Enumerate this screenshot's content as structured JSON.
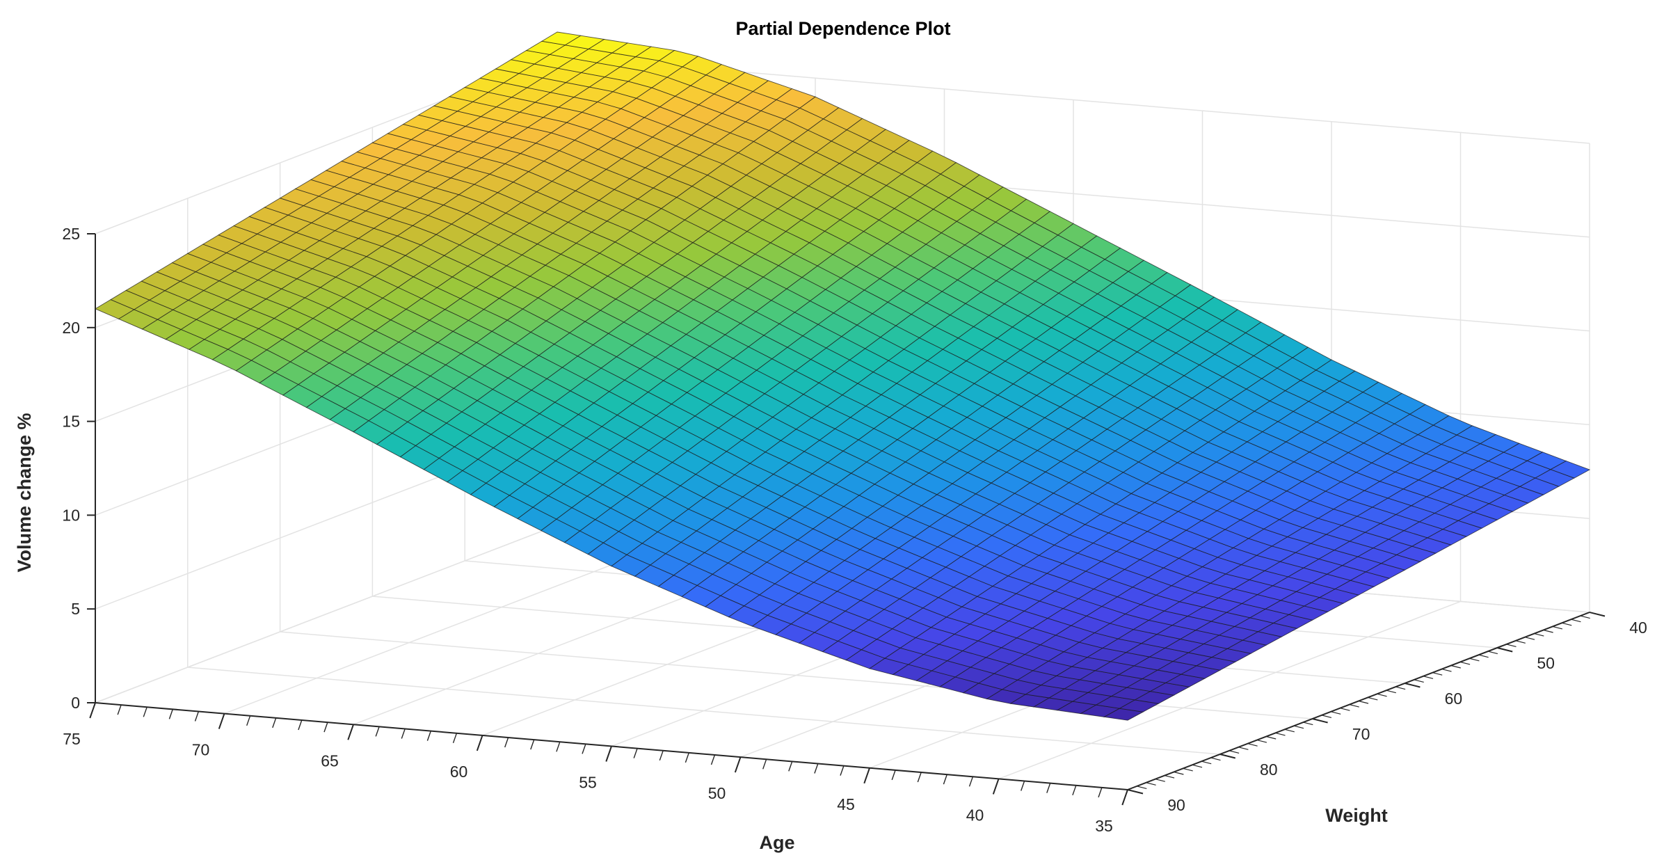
{
  "chart_data": {
    "type": "surface",
    "title": "Partial Dependence Plot",
    "xlabel": "Age",
    "ylabel": "Weight",
    "zlabel": "Volume change %",
    "x_range": [
      35,
      75
    ],
    "y_range": [
      40,
      90
    ],
    "zlim": [
      0,
      25
    ],
    "x_ticks": [
      "75",
      "70",
      "65",
      "60",
      "55",
      "50",
      "45",
      "40",
      "35"
    ],
    "y_ticks": [
      "40",
      "50",
      "60",
      "70",
      "80",
      "90"
    ],
    "z_ticks": [
      "0",
      "5",
      "10",
      "15",
      "20",
      "25"
    ],
    "grid": true,
    "colormap": "parula",
    "surface_samples": {
      "age": [
        35,
        40,
        45,
        50,
        55,
        60,
        65,
        70,
        75
      ],
      "z_at_weight_40": [
        7.6,
        9.6,
        12.3,
        15.4,
        18.4,
        21.4,
        24.0,
        25.8,
        26.3
      ],
      "z_at_weight_90": [
        3.7,
        4.1,
        5.3,
        7.2,
        9.6,
        12.5,
        15.6,
        18.6,
        21.0
      ]
    },
    "colors": {
      "background": "#ffffff",
      "grid": "#e3e3e3",
      "axis": "#262626",
      "mesh_edge": "#1a1a1a"
    }
  }
}
